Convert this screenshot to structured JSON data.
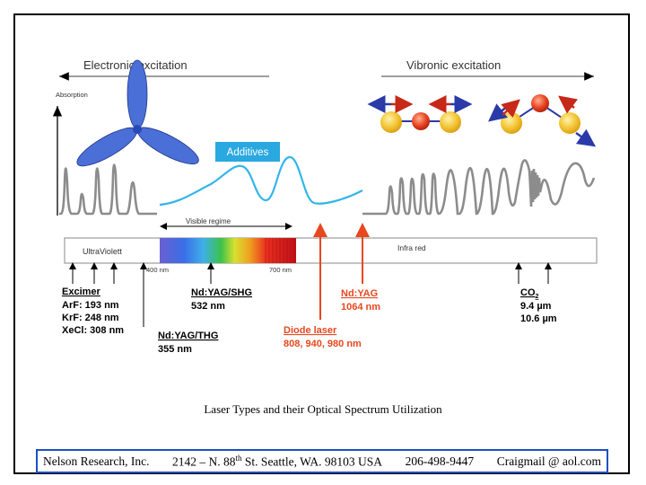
{
  "diagram": {
    "electronic_label": "Electronic excitation",
    "vibronic_label": "Vibronic excitation",
    "absorption_label": "Absorption",
    "additives_label": "Additives",
    "visible_regime_label": "Visible regime",
    "ultraviolet_label": "UltraViolett",
    "infrared_label": "Infra red",
    "wl_400": "400 nm",
    "wl_700": "700 nm",
    "excimer": {
      "title": "Excimer",
      "lines": [
        "ArF: 193 nm",
        "KrF: 248 nm",
        "XeCl: 308 nm"
      ]
    },
    "ndyag_shg": {
      "title": "Nd:YAG/SHG",
      "value": "532 nm"
    },
    "ndyag_thg": {
      "title": "Nd:YAG/THG",
      "value": "355 nm"
    },
    "ndyag": {
      "title": "Nd:YAG",
      "value": "1064 nm"
    },
    "diode": {
      "title": "Diode laser",
      "value": "808, 940, 980 nm"
    },
    "co2": {
      "title": "CO",
      "subscript": "2",
      "lines": [
        "9.4 µm",
        "10.6 µm"
      ]
    },
    "colors": {
      "red_laser": "#e8471f",
      "additives_box": "#2aa8e0",
      "additives_curve": "#33b5ea",
      "spectrum_gray": "#8c8c8c",
      "lobe_blue": "#4a6fd6",
      "atom_yellow": "#f2c230",
      "atom_red": "#e8401e",
      "bond_blue": "#2a3aa8"
    }
  },
  "caption": "Laser Types and their Optical Spectrum Utilization",
  "footer": {
    "company": "Nelson Research, Inc.",
    "address_pre": "2142 – N. 88",
    "address_sup": "th",
    "address_post": " St. Seattle, WA. 98103  USA",
    "phone": "206-498-9447",
    "email": "Craigmail @ aol.com"
  }
}
